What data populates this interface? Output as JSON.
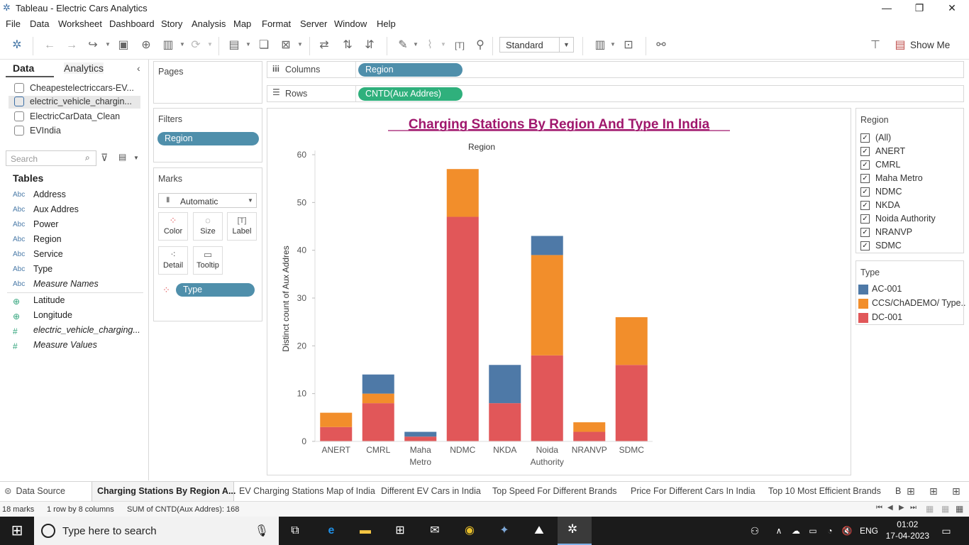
{
  "window": {
    "title": "Tableau - Electric Cars Analytics"
  },
  "menu": [
    "File",
    "Data",
    "Worksheet",
    "Dashboard",
    "Story",
    "Analysis",
    "Map",
    "Format",
    "Server",
    "Window",
    "Help"
  ],
  "toolbar": {
    "view_mode": "Standard",
    "show_me": "Show Me"
  },
  "data_pane": {
    "tabs": [
      "Data",
      "Analytics"
    ],
    "datasources": [
      "Cheapestelectriccars-EV...",
      "electric_vehicle_chargin...",
      "ElectricCarData_Clean",
      "EVIndia"
    ],
    "search_placeholder": "Search",
    "tables_heading": "Tables",
    "fields": [
      {
        "type": "Abc",
        "name": "Address"
      },
      {
        "type": "Abc",
        "name": "Aux Addres"
      },
      {
        "type": "Abc",
        "name": "Power"
      },
      {
        "type": "Abc",
        "name": "Region"
      },
      {
        "type": "Abc",
        "name": "Service"
      },
      {
        "type": "Abc",
        "name": "Type"
      },
      {
        "type": "Abc",
        "name": "Measure Names"
      },
      {
        "type": "globe",
        "name": "Latitude"
      },
      {
        "type": "globe",
        "name": "Longitude"
      },
      {
        "type": "#",
        "name": "electric_vehicle_charging..."
      },
      {
        "type": "#",
        "name": "Measure Values"
      }
    ]
  },
  "shelves": {
    "pages_label": "Pages",
    "filters_label": "Filters",
    "filter_pill": "Region",
    "marks_label": "Marks",
    "mark_type": "Automatic",
    "mark_buttons": [
      "Color",
      "Size",
      "Label",
      "Detail",
      "Tooltip"
    ],
    "color_pill": "Type",
    "columns_label": "Columns",
    "columns_pill": "Region",
    "rows_label": "Rows",
    "rows_pill": "CNTD(Aux Addres)"
  },
  "chart_data": {
    "type": "bar",
    "stacked": true,
    "title": "Charging Stations By Region And Type In India",
    "header": "Region",
    "ylabel": "Distinct count of Aux Addres",
    "ylim": [
      0,
      60
    ],
    "yticks": [
      0,
      10,
      20,
      30,
      40,
      50,
      60
    ],
    "categories": [
      "ANERT",
      "CMRL",
      "Maha Metro",
      "NDMC",
      "NKDA",
      "Noida Authority",
      "NRANVP",
      "SDMC"
    ],
    "category_lines": [
      [
        "ANERT"
      ],
      [
        "CMRL"
      ],
      [
        "Maha",
        "Metro"
      ],
      [
        "NDMC"
      ],
      [
        "NKDA"
      ],
      [
        "Noida",
        "Authority"
      ],
      [
        "NRANVP"
      ],
      [
        "SDMC"
      ]
    ],
    "series": [
      {
        "name": "DC-001",
        "color": "#e15759",
        "values": [
          3,
          8,
          1,
          47,
          8,
          18,
          2,
          16
        ]
      },
      {
        "name": "CCS/ChADEMO/ Type...",
        "color": "#f28e2b",
        "values": [
          3,
          2,
          0,
          10,
          0,
          21,
          2,
          10
        ]
      },
      {
        "name": "AC-001",
        "color": "#4e79a7",
        "values": [
          0,
          4,
          1,
          0,
          8,
          4,
          0,
          0
        ]
      }
    ]
  },
  "region_filter": {
    "title": "Region",
    "items": [
      "(All)",
      "ANERT",
      "CMRL",
      "Maha Metro",
      "NDMC",
      "NKDA",
      "Noida Authority",
      "NRANVP",
      "SDMC"
    ]
  },
  "type_legend": {
    "title": "Type",
    "items": [
      {
        "label": "AC-001",
        "color": "#4e79a7"
      },
      {
        "label": "CCS/ChADEMO/ Type..",
        "color": "#f28e2b"
      },
      {
        "label": "DC-001",
        "color": "#e15759"
      }
    ]
  },
  "sheet_tabs": [
    "Data Source",
    "Charging Stations By Region A...",
    "EV Charging Stations Map of India",
    "Different EV Cars in India",
    "Top Speed For Different Brands",
    "Price For Different Cars In India",
    "Top 10 Most Efficient Brands",
    "B"
  ],
  "status": {
    "marks": "18 marks",
    "layout": "1 row by 8 columns",
    "sum": "SUM of CNTD(Aux Addres): 168"
  },
  "taskbar": {
    "search_placeholder": "Type here to search",
    "lang": "ENG",
    "time": "01:02",
    "date": "17-04-2023"
  }
}
